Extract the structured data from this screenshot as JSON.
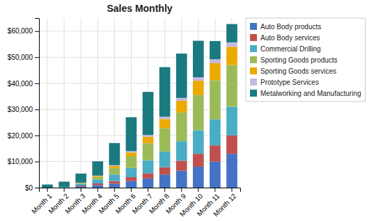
{
  "chart_data": {
    "type": "bar",
    "stacked": true,
    "title": "Sales Monthly",
    "categories": [
      "Month 1",
      "Month 2",
      "Month 3",
      "Month 4",
      "Month 5",
      "Month 6",
      "Month 7",
      "Month 8",
      "Month 9",
      "Month 10",
      "Month 11",
      "Month 12"
    ],
    "series": [
      {
        "name": "Auto Body products",
        "color": "#4472C4",
        "values": [
          0,
          0,
          500,
          1000,
          1500,
          2500,
          3500,
          5000,
          6500,
          8000,
          10000,
          13000
        ]
      },
      {
        "name": "Auto Body services",
        "color": "#C0504D",
        "values": [
          0,
          0,
          300,
          600,
          1000,
          1500,
          2000,
          2800,
          3800,
          5000,
          6200,
          7000
        ]
      },
      {
        "name": "Commercial Drilling",
        "color": "#4BACC6",
        "values": [
          0,
          300,
          700,
          1500,
          2500,
          3500,
          5000,
          6000,
          7500,
          9000,
          10000,
          11000
        ]
      },
      {
        "name": "Sporting Goods products",
        "color": "#9BBB59",
        "values": [
          0,
          0,
          300,
          1000,
          2500,
          4500,
          6500,
          9000,
          11000,
          13500,
          15000,
          16000
        ]
      },
      {
        "name": "Sporting Goods services",
        "color": "#EBAA00",
        "values": [
          0,
          0,
          100,
          400,
          800,
          1500,
          2500,
          3500,
          4500,
          5500,
          6500,
          7000
        ]
      },
      {
        "name": "Prototype Services",
        "color": "#C4B9E0",
        "values": [
          0,
          0,
          0,
          100,
          300,
          500,
          700,
          900,
          1100,
          1300,
          1500,
          1700
        ]
      },
      {
        "name": "Metalworking and Manufacturing",
        "color": "#1A7A80",
        "values": [
          1200,
          2000,
          3500,
          5500,
          8500,
          13000,
          16500,
          19000,
          17000,
          14000,
          7000,
          7000
        ]
      }
    ],
    "ylim": [
      0,
      65000
    ],
    "yticks": [
      {
        "value": 0,
        "label": "$0"
      },
      {
        "value": 10000,
        "label": "$10,000"
      },
      {
        "value": 20000,
        "label": "$20,000"
      },
      {
        "value": 30000,
        "label": "$30,000"
      },
      {
        "value": 40000,
        "label": "$40,000"
      },
      {
        "value": 50000,
        "label": "$50,000"
      },
      {
        "value": 60000,
        "label": "$60,000"
      }
    ],
    "grid": true,
    "legend": "right"
  }
}
